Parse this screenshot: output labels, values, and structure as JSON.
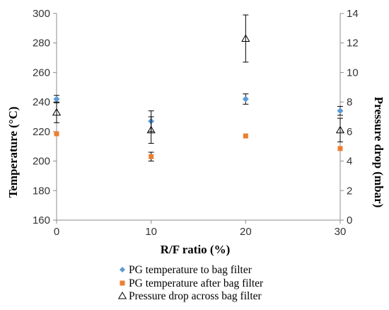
{
  "chart_data": {
    "type": "scatter",
    "xlabel": "R/F ratio (%)",
    "ylabel": "Temperature (°C)",
    "y2label": "Pressure drop (mbar)",
    "xlim": [
      0,
      30
    ],
    "ylim": [
      160,
      300
    ],
    "y2lim": [
      0,
      14
    ],
    "xticks": [
      "0",
      "10",
      "20",
      "30"
    ],
    "yticks": [
      "160",
      "180",
      "200",
      "220",
      "240",
      "260",
      "280",
      "300"
    ],
    "y2ticks": [
      "0",
      "2",
      "4",
      "6",
      "8",
      "10",
      "12",
      "14"
    ],
    "grid": false,
    "legend_position": "bottom",
    "series": [
      {
        "name": "PG temperature to bag filter",
        "axis": "left",
        "marker": "diamond",
        "color": "#5b9bd5",
        "x": [
          0,
          10,
          20,
          30
        ],
        "y": [
          242,
          227,
          242,
          234
        ],
        "err": [
          2.5,
          7,
          3.5,
          3
        ]
      },
      {
        "name": "PG temperature after bag filter",
        "axis": "left",
        "marker": "square",
        "color": "#ed7d31",
        "x": [
          0,
          10,
          20,
          30
        ],
        "y": [
          218.5,
          203,
          217,
          208.5
        ],
        "err": [
          0,
          3,
          0,
          0
        ]
      },
      {
        "name": "Pressure drop across bag filter",
        "axis": "right",
        "marker": "triangle-open",
        "color": "#000000",
        "x": [
          0,
          10,
          20,
          30
        ],
        "y": [
          7.3,
          6.1,
          12.3,
          6.1
        ],
        "err": [
          0.7,
          0.9,
          1.6,
          0.8
        ]
      }
    ]
  }
}
